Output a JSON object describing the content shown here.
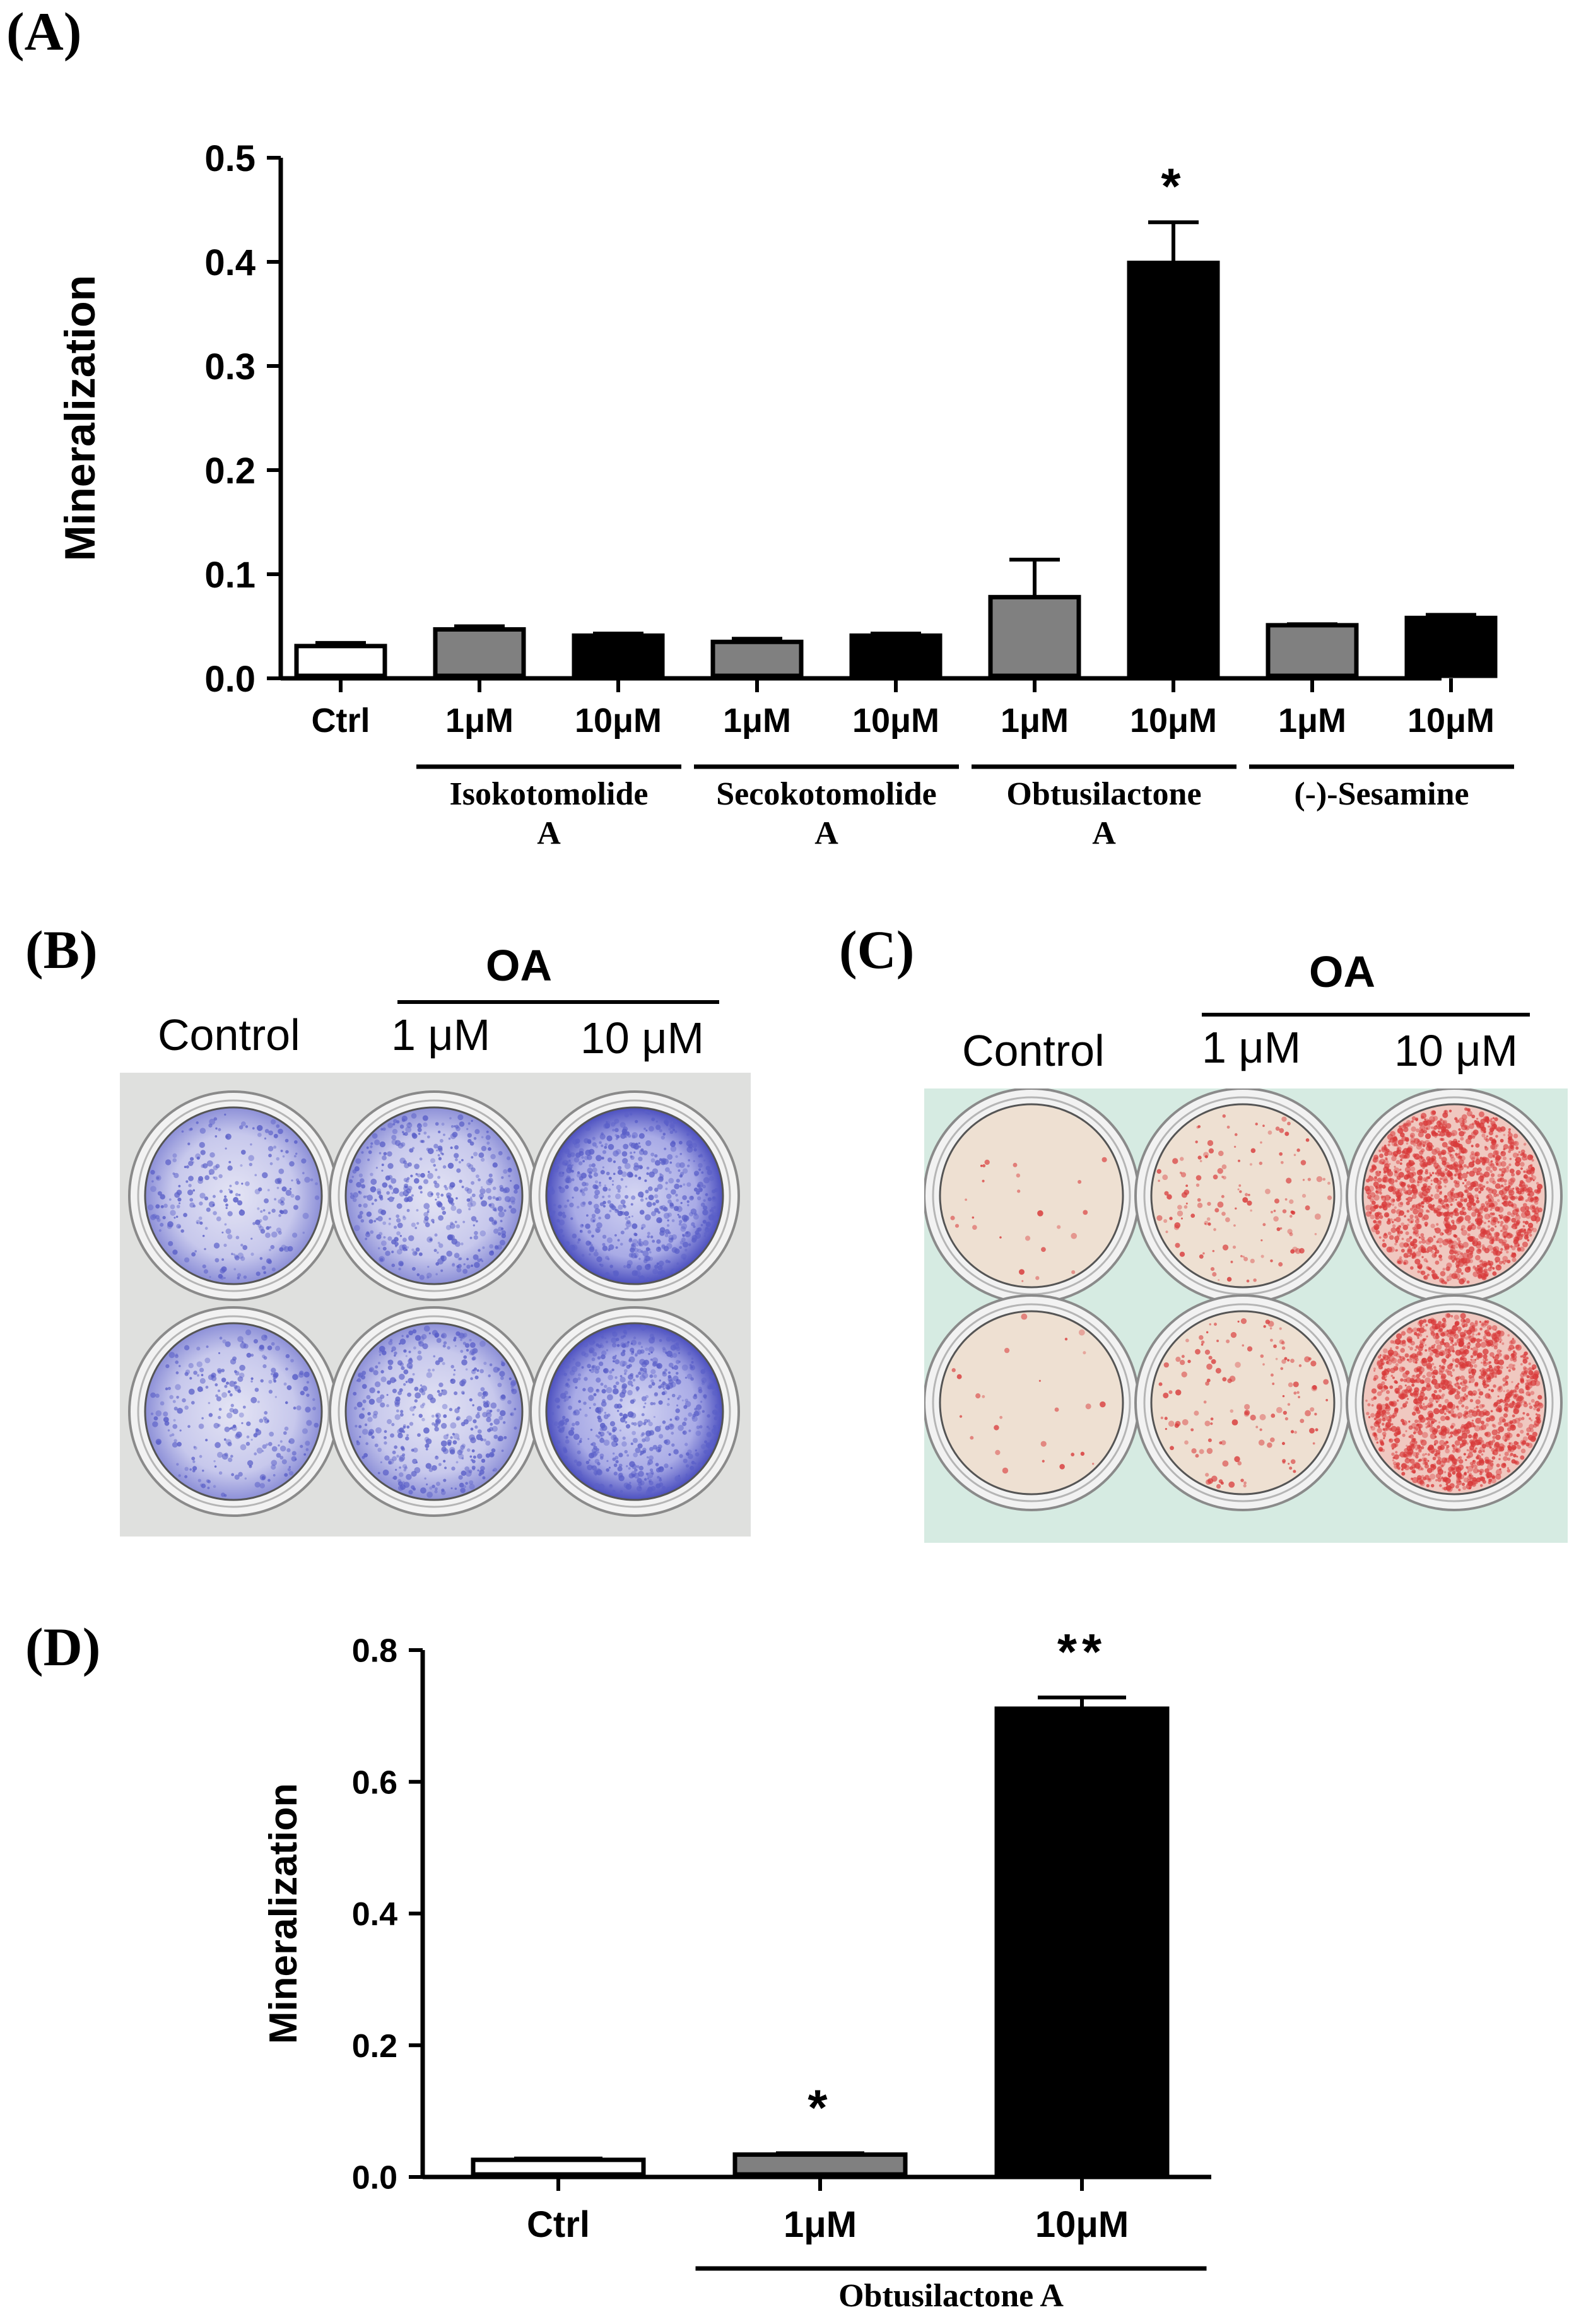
{
  "panels": {
    "a": {
      "label": "(A)"
    },
    "b": {
      "label": "(B)",
      "header_group": "OA",
      "headers": [
        "Control",
        "1 μM",
        "10 μM"
      ]
    },
    "c": {
      "label": "(C)",
      "header_group": "OA",
      "headers": [
        "Control",
        "1 μM",
        "10 μM"
      ]
    },
    "d": {
      "label": "(D)"
    }
  },
  "colors": {
    "white_bar": "#ffffff",
    "gray_bar": "#808080",
    "black_bar": "#000000",
    "alp_stain": "#5a5fc8",
    "ars_stain": "#d83a3a"
  },
  "chart_data": [
    {
      "type": "bar",
      "ylabel": "Mineralization",
      "ylim": [
        0,
        0.5
      ],
      "yticks": [
        "0.0",
        "0.1",
        "0.2",
        "0.3",
        "0.4",
        "0.5"
      ],
      "categories": [
        "Ctrl",
        "1μM",
        "10μM",
        "1μM",
        "10μM",
        "1μM",
        "10μM",
        "1μM",
        "10μM"
      ],
      "values": [
        0.031,
        0.047,
        0.041,
        0.035,
        0.041,
        0.078,
        0.399,
        0.051,
        0.058
      ],
      "errors": [
        0.003,
        0.003,
        0.002,
        0.003,
        0.002,
        0.036,
        0.039,
        0.001,
        0.003
      ],
      "fills": [
        "white",
        "gray",
        "black",
        "gray",
        "black",
        "gray",
        "black",
        "gray",
        "black"
      ],
      "annotations": [
        "",
        "",
        "",
        "",
        "",
        "",
        "*",
        "",
        ""
      ],
      "groups": [
        {
          "line1": "Isokotomolide",
          "line2": "A",
          "start": 1,
          "end": 2
        },
        {
          "line1": "Secokotomolide",
          "line2": "A",
          "start": 3,
          "end": 4
        },
        {
          "line1": "Obtusilactone",
          "line2": "A",
          "start": 5,
          "end": 6
        },
        {
          "line1": "(-)-Sesamine",
          "line2": "",
          "start": 7,
          "end": 8
        }
      ]
    },
    {
      "type": "bar",
      "ylabel": "Mineralization",
      "ylim": [
        0,
        0.8
      ],
      "yticks": [
        "0.0",
        "0.2",
        "0.4",
        "0.6",
        "0.8"
      ],
      "categories": [
        "Ctrl",
        "1μM",
        "10μM"
      ],
      "values": [
        0.026,
        0.034,
        0.711
      ],
      "errors": [
        0.002,
        0.002,
        0.017
      ],
      "fills": [
        "white",
        "gray",
        "black"
      ],
      "annotations": [
        "",
        "*",
        "**"
      ],
      "groups": [
        {
          "line1": "Obtusilactone A",
          "line2": "",
          "start": 1,
          "end": 2
        }
      ]
    }
  ]
}
